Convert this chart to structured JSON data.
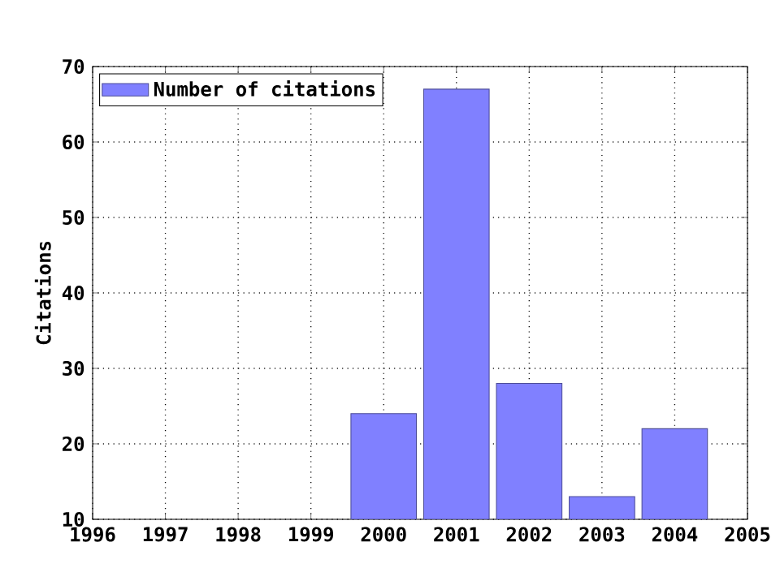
{
  "chart_data": {
    "type": "bar",
    "ylabel": "Citations",
    "x": [
      2000,
      2001,
      2002,
      2003,
      2004
    ],
    "series": [
      {
        "name": "Number of citations",
        "color": "#8080ff",
        "values": [
          24,
          67,
          28,
          13,
          22
        ]
      }
    ],
    "xlim": [
      1996,
      2005
    ],
    "xticks": [
      1996,
      1997,
      1998,
      1999,
      2000,
      2001,
      2002,
      2003,
      2004,
      2005
    ],
    "ylim": [
      10,
      70
    ],
    "yticks": [
      10,
      20,
      30,
      40,
      50,
      60,
      70
    ],
    "grid": true,
    "legend": "top left"
  }
}
